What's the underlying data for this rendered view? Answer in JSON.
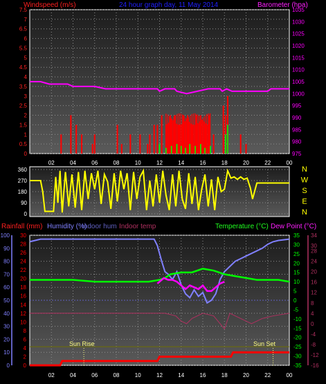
{
  "header": {
    "windspeed_label": "Windspeed (m/s)",
    "graph_title": "24 hour graph day, 11 May 2014",
    "barometer_label": "Barometer (hpa)"
  },
  "compass_labels": [
    "N",
    "W",
    "S",
    "E",
    "N"
  ],
  "temp_header": {
    "rainfall": "Rainfall (mm)",
    "humidity": "Humidity (%)",
    "indoor_hum": "Indoor hum",
    "indoor_temp": "Indoor temp",
    "temperature": "Temperature (°C)",
    "dew_point": "Dew Point (°C)"
  },
  "annotations": {
    "sunrise": "Sun Rise",
    "sunset": "Sun Set"
  },
  "x_ticks": [
    "02",
    "04",
    "06",
    "08",
    "10",
    "12",
    "14",
    "16",
    "18",
    "20",
    "22",
    "00"
  ],
  "colors": {
    "wind": "#ff0000",
    "wind_gust": "#00ff00",
    "barometer": "#ff00ff",
    "direction": "#ffff00",
    "temperature": "#00ff00",
    "dew_point": "#ff00ff",
    "humidity": "#8080ff",
    "indoor_temp": "#b03060",
    "indoor_hum": "#6060c0",
    "rainfall": "#ff0000",
    "wind_axis": "#ff2020"
  },
  "chart_data": [
    {
      "id": "wind-barometer",
      "type": "bar",
      "x_unit": "hour",
      "xlim": [
        0,
        24
      ],
      "y_left": {
        "label": "Windspeed (m/s)",
        "ylim": [
          0,
          7.5
        ],
        "ticks": [
          "0",
          "0.5",
          "1",
          "1.5",
          "2",
          "2.5",
          "3",
          "3.5",
          "4",
          "4.5",
          "5",
          "5.5",
          "6",
          "6.5",
          "7",
          "7.5"
        ]
      },
      "y_right": {
        "label": "Barometer (hpa)",
        "ylim": [
          975,
          1035
        ],
        "ticks": [
          "975",
          "980",
          "985",
          "990",
          "995",
          "1000",
          "1005",
          "1010",
          "1015",
          "1020",
          "1025",
          "1030",
          "1035"
        ]
      },
      "series": [
        {
          "name": "Windspeed",
          "bars_x": [
            2.9,
            3.8,
            4.3,
            4.8,
            5.8,
            6.0,
            8.1,
            8.5,
            9.3,
            10.2,
            10.9,
            11.1,
            11.5,
            11.8,
            12.2,
            12.6,
            13.0,
            13.4,
            13.8,
            14.2,
            14.6,
            15.0,
            15.4,
            15.8,
            16.2,
            16.6,
            17.0,
            17.9,
            18.1,
            18.3,
            19.5,
            20.0
          ],
          "bars_y": [
            1.0,
            2.0,
            1.5,
            1.0,
            0.5,
            1.0,
            1.5,
            0.5,
            1.0,
            1.0,
            0.5,
            1.0,
            1.5,
            1.5,
            2.0,
            1.5,
            2.0,
            2.0,
            1.5,
            2.0,
            2.0,
            1.5,
            2.0,
            2.0,
            1.5,
            2.0,
            1.0,
            2.5,
            2.0,
            3.0,
            1.0,
            0.5
          ]
        },
        {
          "name": "Gust",
          "bars_x": [
            12.0,
            12.6,
            13.1,
            13.6,
            14.0,
            14.4,
            14.8,
            15.3,
            15.8,
            16.2,
            16.7,
            18.1,
            18.3
          ],
          "bars_y": [
            0.5,
            0.3,
            0.4,
            0.5,
            0.4,
            0.3,
            0.5,
            0.4,
            0.5,
            0.3,
            0.4,
            1.0,
            1.5
          ]
        },
        {
          "name": "Barometer",
          "axis": "right",
          "x": [
            0,
            1,
            1.8,
            3.5,
            4.0,
            6.0,
            7.0,
            9.0,
            11.8,
            12.0,
            12.5,
            13.4,
            13.6,
            14.5,
            15.5,
            16.5,
            17.6,
            17.8,
            18.2,
            18.7,
            22.0,
            22.3,
            24.0
          ],
          "y": [
            1005,
            1005,
            1004,
            1004,
            1003,
            1003,
            1002,
            1002,
            1002,
            1001,
            1002,
            1002,
            1001,
            1000,
            1001,
            1002,
            1002,
            1001,
            1002,
            1001,
            1001,
            1002,
            1002
          ]
        }
      ]
    },
    {
      "id": "wind-direction",
      "type": "line",
      "x_unit": "hour",
      "xlim": [
        0,
        24
      ],
      "y_left": {
        "ylim": [
          0,
          360
        ],
        "ticks": [
          "0",
          "90",
          "180",
          "270",
          "360"
        ]
      },
      "series": [
        {
          "name": "Wind direction",
          "x": [
            0,
            1.0,
            1.2,
            1.4,
            2.2,
            2.4,
            2.6,
            2.8,
            3.0,
            3.3,
            3.6,
            3.9,
            4.2,
            4.5,
            4.8,
            5.1,
            5.4,
            5.7,
            6.0,
            6.3,
            6.6,
            6.9,
            7.2,
            7.5,
            7.8,
            8.1,
            8.4,
            8.7,
            9.0,
            9.3,
            9.6,
            9.9,
            10.2,
            10.5,
            10.8,
            11.1,
            11.4,
            11.7,
            12.0,
            12.3,
            12.6,
            12.9,
            13.2,
            13.5,
            13.8,
            14.1,
            14.4,
            14.7,
            15.0,
            15.3,
            15.6,
            15.9,
            16.2,
            16.5,
            16.8,
            17.1,
            17.4,
            17.7,
            18.0,
            18.3,
            18.6,
            18.9,
            19.2,
            19.5,
            19.8,
            20.1,
            20.4,
            20.6,
            21.0,
            24.0
          ],
          "y": [
            270,
            270,
            180,
            20,
            20,
            300,
            90,
            350,
            10,
            340,
            60,
            320,
            50,
            340,
            30,
            350,
            120,
            330,
            200,
            350,
            80,
            320,
            260,
            40,
            330,
            100,
            350,
            200,
            330,
            30,
            340,
            120,
            300,
            350,
            30,
            270,
            60,
            320,
            90,
            350,
            150,
            30,
            320,
            60,
            350,
            120,
            40,
            330,
            80,
            300,
            30,
            200,
            320,
            60,
            280,
            30,
            300,
            180,
            200,
            350,
            290,
            300,
            280,
            300,
            280,
            290,
            210,
            120,
            250,
            250
          ]
        }
      ]
    },
    {
      "id": "temperature",
      "type": "line",
      "x_unit": "hour",
      "xlim": [
        0,
        24
      ],
      "y_left": {
        "label": "Humidity (%)",
        "ylim": [
          0,
          100
        ],
        "ticks": [
          "0",
          "10",
          "20",
          "30",
          "40",
          "50",
          "60",
          "70",
          "80",
          "90",
          "100"
        ]
      },
      "y_left_inner": {
        "label": "Rainfall (mm)",
        "ylim": [
          0,
          30
        ],
        "ticks": [
          "0",
          "2",
          "4",
          "6",
          "8",
          "10",
          "12",
          "14",
          "16",
          "18",
          "20",
          "22",
          "24",
          "26",
          "28",
          "30"
        ]
      },
      "y_right": {
        "label": "Temperature (°C)",
        "ylim": [
          -35,
          35
        ],
        "ticks": [
          "-35",
          "-30",
          "-25",
          "-20",
          "-15",
          "-10",
          "-5",
          "0",
          "5",
          "10",
          "15",
          "20",
          "25",
          "30",
          "35"
        ]
      },
      "y_right_outer": {
        "label": "Indoor temp",
        "ylim": [
          -16,
          34
        ],
        "ticks": [
          "-16",
          "-12",
          "-8",
          "-4",
          "0",
          "4",
          "8",
          "12",
          "16",
          "20",
          "24",
          "28",
          "30",
          "34"
        ]
      },
      "series": [
        {
          "name": "Humidity (%)",
          "x": [
            0,
            0.5,
            1,
            2,
            5,
            8,
            10,
            11.5,
            11.8,
            12.2,
            12.5,
            12.8,
            13.2,
            13.6,
            14.0,
            14.4,
            14.8,
            15.2,
            15.6,
            16.0,
            16.4,
            16.8,
            17.2,
            17.6,
            18.0,
            18.5,
            19.0,
            19.5,
            20.0,
            20.5,
            21.0,
            21.5,
            22.0,
            22.5,
            23.0,
            24.0
          ],
          "y": [
            95,
            96,
            97,
            97,
            97,
            97,
            97,
            97,
            92,
            80,
            72,
            70,
            66,
            72,
            62,
            55,
            52,
            58,
            53,
            56,
            48,
            50,
            55,
            66,
            72,
            76,
            80,
            82,
            84,
            86,
            88,
            90,
            93,
            95,
            96,
            97
          ]
        },
        {
          "name": "Temperature (°C)",
          "x": [
            0,
            2,
            4,
            6,
            8,
            10,
            11,
            12,
            12.5,
            13,
            14,
            15,
            16,
            17,
            17.5,
            18,
            19,
            20,
            21,
            22,
            23,
            24
          ],
          "y": [
            11,
            11,
            11,
            10,
            10,
            10,
            10,
            11,
            12,
            14,
            15,
            15,
            17,
            16,
            15,
            14,
            13,
            12,
            11,
            11,
            11,
            10
          ]
        },
        {
          "name": "Dew Point (°C)",
          "x": [
            11.8,
            12.0,
            12.4,
            12.8,
            13.2,
            13.6,
            14.0,
            14.4,
            14.8,
            15.2,
            15.6,
            16.0,
            16.4,
            16.8,
            17.2,
            17.6,
            18.0
          ],
          "y": [
            9,
            10,
            12,
            11,
            11,
            10,
            8,
            6,
            8,
            7,
            6,
            8,
            5,
            5,
            7,
            9,
            10
          ]
        },
        {
          "name": "Indoor temp",
          "x": [
            0,
            4,
            8,
            11,
            12.5,
            13.5,
            14.0,
            14.5,
            15.0,
            16.0,
            17.0,
            18.0,
            18.5,
            19.5,
            20.5,
            21.5,
            22.5,
            24
          ],
          "y": [
            4,
            4,
            4,
            4,
            4,
            3,
            1,
            0,
            2,
            4,
            3,
            -2,
            4,
            2,
            0,
            2,
            3,
            4
          ]
        },
        {
          "name": "Indoor hum",
          "x": [
            0,
            24
          ],
          "y": [
            50,
            50
          ]
        },
        {
          "name": "Rainfall (mm)",
          "x": [
            0,
            2.8,
            3.0,
            11.8,
            12.0,
            18.6,
            18.8,
            24.0
          ],
          "y": [
            0,
            0,
            1,
            1,
            2,
            2,
            3,
            3
          ]
        }
      ],
      "sunrise_hour": 5.0,
      "sunset_hour": 22.5
    }
  ]
}
